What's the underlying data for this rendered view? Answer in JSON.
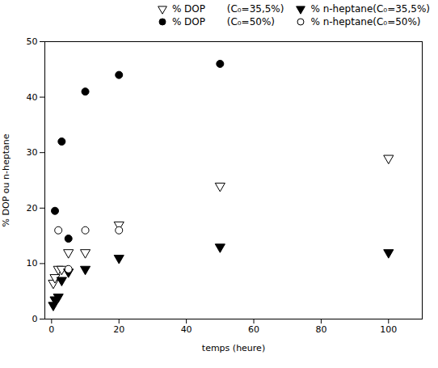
{
  "chart_data": {
    "type": "scatter",
    "xlabel": "temps (heure)",
    "ylabel": "% DOP ou n-heptane",
    "xlim": [
      -2,
      110
    ],
    "ylim": [
      0,
      50
    ],
    "xticks": [
      0,
      20,
      40,
      60,
      80,
      100
    ],
    "yticks": [
      0,
      10,
      20,
      30,
      40,
      50
    ],
    "legend": "upper right",
    "series": [
      {
        "name": "% DOP       (C₀=35,5%)",
        "color": "black",
        "marker": "triangle-down-open",
        "x": [
          0.5,
          1,
          2,
          3,
          5,
          10,
          20,
          50,
          100
        ],
        "values": [
          6.5,
          7.5,
          9,
          9,
          12,
          12,
          17,
          24,
          29
        ]
      },
      {
        "name": "% n-heptane(C₀=35,5%)",
        "color": "black",
        "marker": "triangle-down",
        "x": [
          0.5,
          1,
          2,
          3,
          5,
          10,
          20,
          50,
          100
        ],
        "values": [
          2.5,
          3.5,
          4,
          7,
          8.5,
          9,
          11,
          13,
          12
        ]
      },
      {
        "name": "% DOP       (C₀=50%)",
        "color": "black",
        "marker": "circle",
        "x": [
          1,
          3,
          5,
          10,
          20,
          50
        ],
        "values": [
          19.5,
          32,
          14.5,
          41,
          44,
          46
        ]
      },
      {
        "name": "% n-heptane(C₀=50%)",
        "color": "black",
        "marker": "circle-open",
        "x": [
          2,
          5,
          10,
          20
        ],
        "values": [
          16,
          9,
          16,
          16
        ]
      }
    ]
  }
}
